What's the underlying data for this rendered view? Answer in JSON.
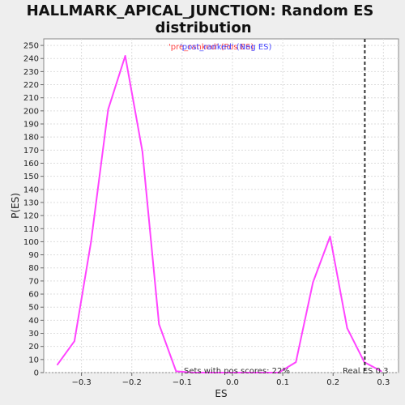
{
  "chart_data": {
    "type": "line",
    "title_line1": "HALLMARK_APICAL_JUNCTION: Random ES",
    "title_line2": "distribution",
    "xlabel": "ES",
    "ylabel": "P(ES)",
    "xlim": [
      -0.375,
      0.33
    ],
    "ylim": [
      0,
      255
    ],
    "x_ticks": [
      -0.3,
      -0.2,
      -0.1,
      0.0,
      0.1,
      0.2,
      0.3
    ],
    "x_tick_labels": [
      "−0.3",
      "−0.2",
      "−0.1",
      "0.0",
      "0.1",
      "0.2",
      "0.3"
    ],
    "y_ticks": [
      0,
      10,
      20,
      30,
      40,
      50,
      60,
      70,
      80,
      90,
      100,
      110,
      120,
      130,
      140,
      150,
      160,
      170,
      180,
      190,
      200,
      210,
      220,
      230,
      240,
      250
    ],
    "grid": true,
    "series": [
      {
        "color": "#ff44ff",
        "x": [
          -0.348,
          -0.314,
          -0.281,
          -0.247,
          -0.213,
          -0.179,
          -0.146,
          -0.112,
          -0.078,
          -0.044,
          -0.01,
          0.024,
          0.058,
          0.092,
          0.126,
          0.16,
          0.194,
          0.228,
          0.262,
          0.296
        ],
        "y": [
          6,
          24,
          100,
          201,
          242,
          169,
          37,
          1,
          0,
          0,
          0,
          0,
          0,
          0,
          8,
          69,
          104,
          34,
          8,
          1
        ]
      }
    ],
    "real_es": 0.263,
    "real_es_label": "Real ES 0.3",
    "pos_scores_label": "Sets with pos scores: 22%",
    "legend": {
      "position": "top-center",
      "entries": [
        {
          "text": "'pre_ranked' (Pos ES)",
          "color": "#ff4444"
        },
        {
          "text": "'post_ranked' (Neg ES)",
          "color": "#4444ff"
        }
      ]
    }
  }
}
